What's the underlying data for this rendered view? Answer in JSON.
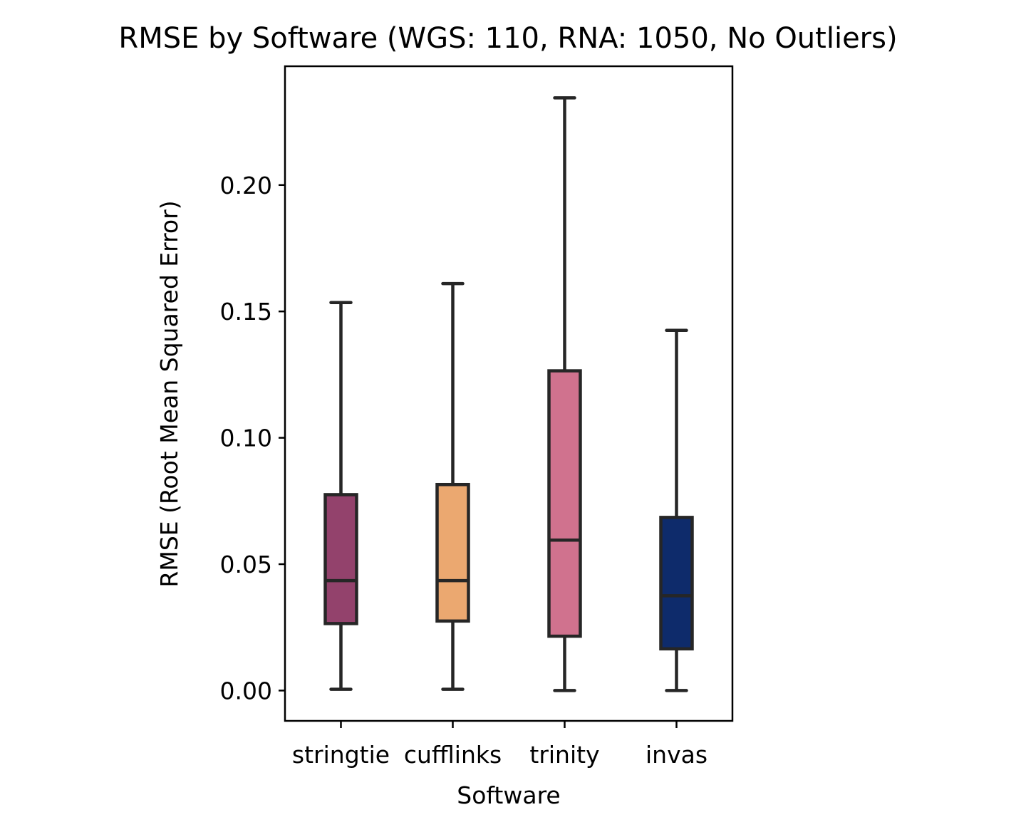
{
  "chart_data": {
    "type": "box",
    "title": "RMSE by Software (WGS: 110, RNA: 1050, No Outliers)",
    "xlabel": "Software",
    "ylabel": "RMSE (Root Mean Squared Error)",
    "categories": [
      "stringtie",
      "cufflinks",
      "trinity",
      "invas"
    ],
    "colors": [
      "#93426c",
      "#eba870",
      "#d0728e",
      "#0e2b6b"
    ],
    "edge_color": "#262626",
    "ylim": [
      -0.012,
      0.247
    ],
    "yticks": [
      0.0,
      0.05,
      0.1,
      0.15,
      0.2
    ],
    "ytick_labels": [
      "0.00",
      "0.05",
      "0.10",
      "0.15",
      "0.20"
    ],
    "grid": false,
    "boxes": [
      {
        "name": "stringtie",
        "whisker_low": 0.0005,
        "q1": 0.0265,
        "median": 0.0435,
        "q3": 0.0775,
        "whisker_high": 0.1535
      },
      {
        "name": "cufflinks",
        "whisker_low": 0.0005,
        "q1": 0.0275,
        "median": 0.0435,
        "q3": 0.0815,
        "whisker_high": 0.161
      },
      {
        "name": "trinity",
        "whisker_low": 0.0,
        "q1": 0.0215,
        "median": 0.0595,
        "q3": 0.1265,
        "whisker_high": 0.2345
      },
      {
        "name": "invas",
        "whisker_low": 0.0,
        "q1": 0.0165,
        "median": 0.0375,
        "q3": 0.0685,
        "whisker_high": 0.1425
      }
    ]
  }
}
